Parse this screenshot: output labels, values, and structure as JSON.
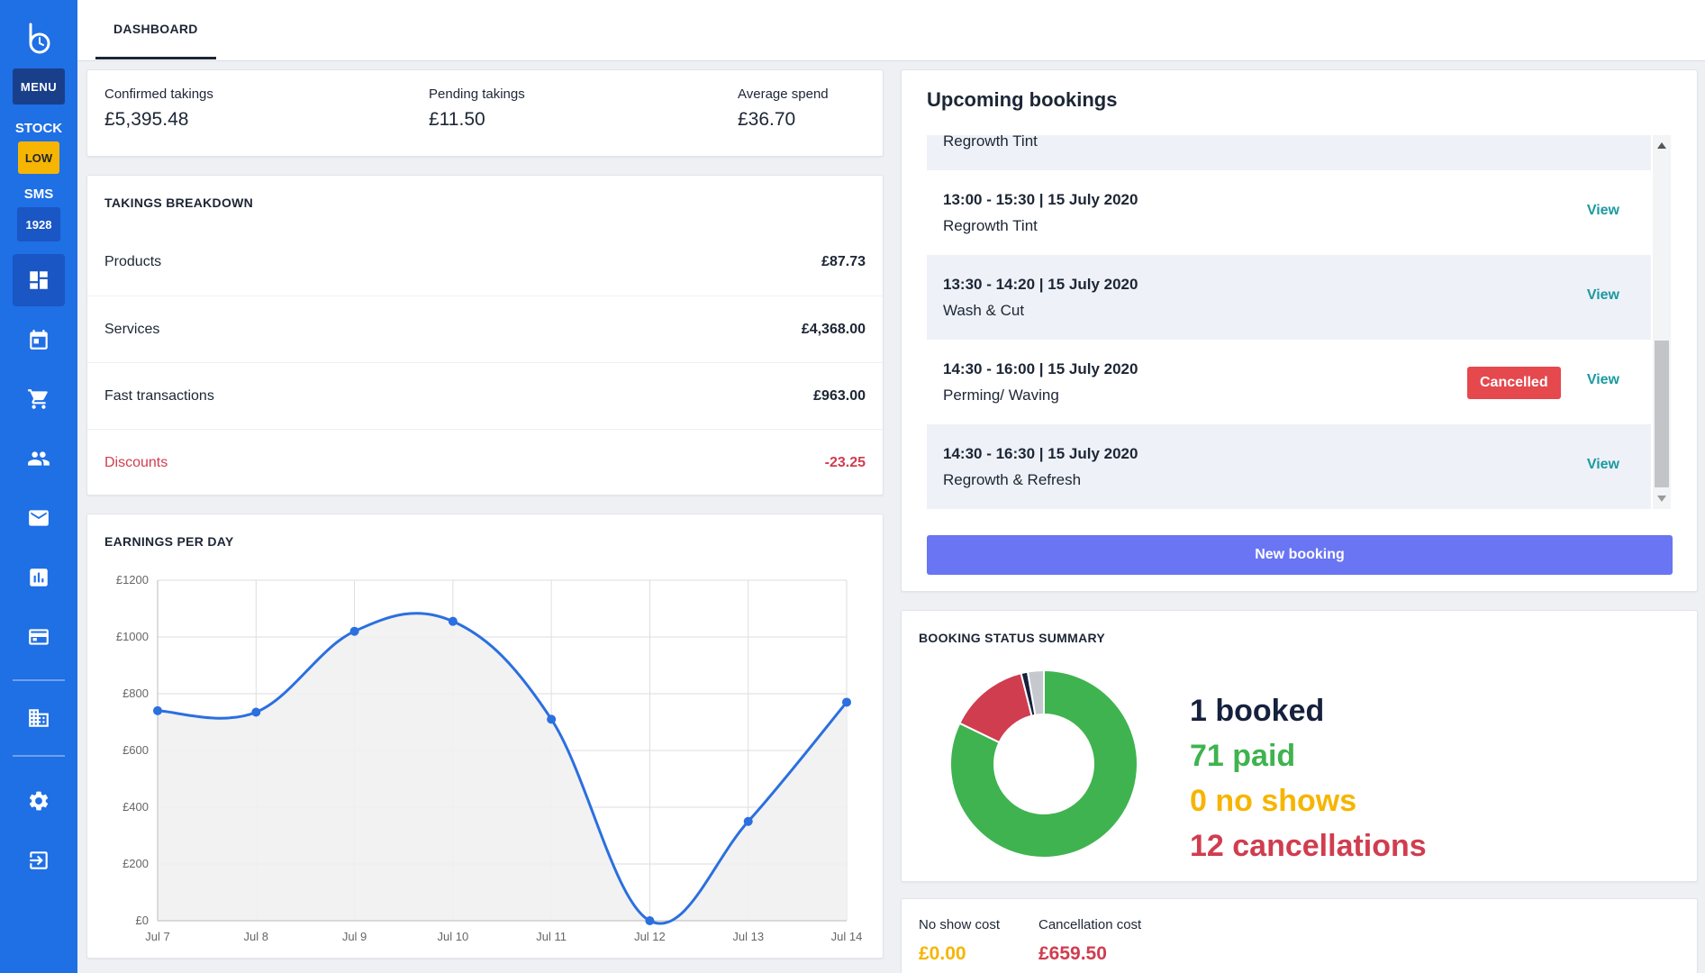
{
  "colors": {
    "sidebar": "#1f6fe5",
    "accent_button": "#6975f3",
    "view_link": "#1a9aa0",
    "cancelled": "#e5484d",
    "booked": "#16213d",
    "paid": "#3fb34f",
    "no_shows": "#f6b500",
    "cancellations": "#d03d4f"
  },
  "sidebar": {
    "menu_label": "MENU",
    "stock_label": "STOCK",
    "stock_status": "LOW",
    "sms_label": "SMS",
    "sms_count": "1928",
    "nav_icons": [
      "dashboard-icon",
      "calendar-icon",
      "cart-icon",
      "people-icon",
      "mail-icon",
      "chart-icon",
      "card-icon",
      "building-icon",
      "gear-icon",
      "logout-icon"
    ]
  },
  "header": {
    "tab_label": "DASHBOARD"
  },
  "totals": {
    "confirmed_label": "Confirmed takings",
    "confirmed_value": "£5,395.48",
    "pending_label": "Pending takings",
    "pending_value": "£11.50",
    "average_label": "Average spend",
    "average_value": "£36.70"
  },
  "breakdown": {
    "title": "TAKINGS BREAKDOWN",
    "rows": [
      {
        "label": "Products",
        "amount": "£87.73"
      },
      {
        "label": "Services",
        "amount": "£4,368.00"
      },
      {
        "label": "Fast transactions",
        "amount": "£963.00"
      },
      {
        "label": "Discounts",
        "amount": "-23.25"
      }
    ]
  },
  "earnings": {
    "title": "EARNINGS PER DAY"
  },
  "chart_data": {
    "type": "line",
    "title": "EARNINGS PER DAY",
    "categories": [
      "Jul 7",
      "Jul 8",
      "Jul 9",
      "Jul 10",
      "Jul 11",
      "Jul 12",
      "Jul 13",
      "Jul 14"
    ],
    "values": [
      740,
      735,
      1020,
      1055,
      710,
      0,
      350,
      770
    ],
    "y_ticks": [
      "£0",
      "£200",
      "£400",
      "£600",
      "£800",
      "£1000",
      "£1200"
    ],
    "ylim": [
      0,
      1200
    ],
    "grid": true,
    "line_color": "#2b6fe0",
    "fill_color": "#f1f1f1"
  },
  "upcoming": {
    "title": "Upcoming bookings",
    "view_label": "View",
    "cancelled_label": "Cancelled",
    "new_booking_label": "New booking",
    "bookings": [
      {
        "time": "",
        "service": "Regrowth Tint",
        "cancelled": false
      },
      {
        "time": "13:00 - 15:30 | 15 July 2020",
        "service": "Regrowth Tint",
        "cancelled": false
      },
      {
        "time": "13:30 - 14:20 | 15 July 2020",
        "service": "Wash & Cut",
        "cancelled": false
      },
      {
        "time": "14:30 - 16:00 | 15 July 2020",
        "service": "Perming/ Waving",
        "cancelled": true
      },
      {
        "time": "14:30 - 16:30 | 15 July 2020",
        "service": "Regrowth & Refresh",
        "cancelled": false
      }
    ]
  },
  "status_summary": {
    "title": "BOOKING STATUS SUMMARY",
    "booked": "1 booked",
    "paid": "71 paid",
    "no_shows": "0 no shows",
    "cancellations": "12 cancellations",
    "donut": [
      {
        "name": "paid",
        "value": 71,
        "color": "#3fb34f"
      },
      {
        "name": "cancellations",
        "value": 12,
        "color": "#d03d4f"
      },
      {
        "name": "booked",
        "value": 1,
        "color": "#16213d"
      },
      {
        "name": "other",
        "value": 2.4,
        "color": "#c5c8cc"
      }
    ]
  },
  "costs": {
    "no_show_label": "No show cost",
    "no_show_value": "£0.00",
    "cancellation_label": "Cancellation cost",
    "cancellation_value": "£659.50"
  }
}
